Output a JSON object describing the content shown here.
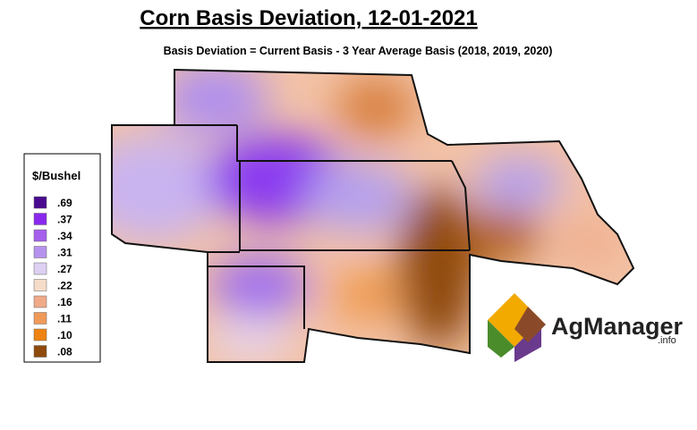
{
  "header": {
    "title": "Corn Basis Deviation, 12-01-2021",
    "subtitle": "Basis Deviation = Current Basis - 3 Year Average Basis (2018, 2019, 2020)"
  },
  "legend": {
    "title": "$/Bushel",
    "items": [
      {
        "label": ".69",
        "color": "#4a0a8f"
      },
      {
        "label": ".37",
        "color": "#8a28ee"
      },
      {
        "label": ".34",
        "color": "#a560ec"
      },
      {
        "label": ".31",
        "color": "#b592ee"
      },
      {
        "label": ".27",
        "color": "#ddd0f2"
      },
      {
        "label": ".22",
        "color": "#f5dcc9"
      },
      {
        "label": ".16",
        "color": "#f0aa88"
      },
      {
        "label": ".11",
        "color": "#f09a5a"
      },
      {
        "label": ".10",
        "color": "#ef8412"
      },
      {
        "label": ".08",
        "color": "#8e4a0c"
      }
    ]
  },
  "logo": {
    "name": "AgManager",
    "suffix": ".info"
  }
}
